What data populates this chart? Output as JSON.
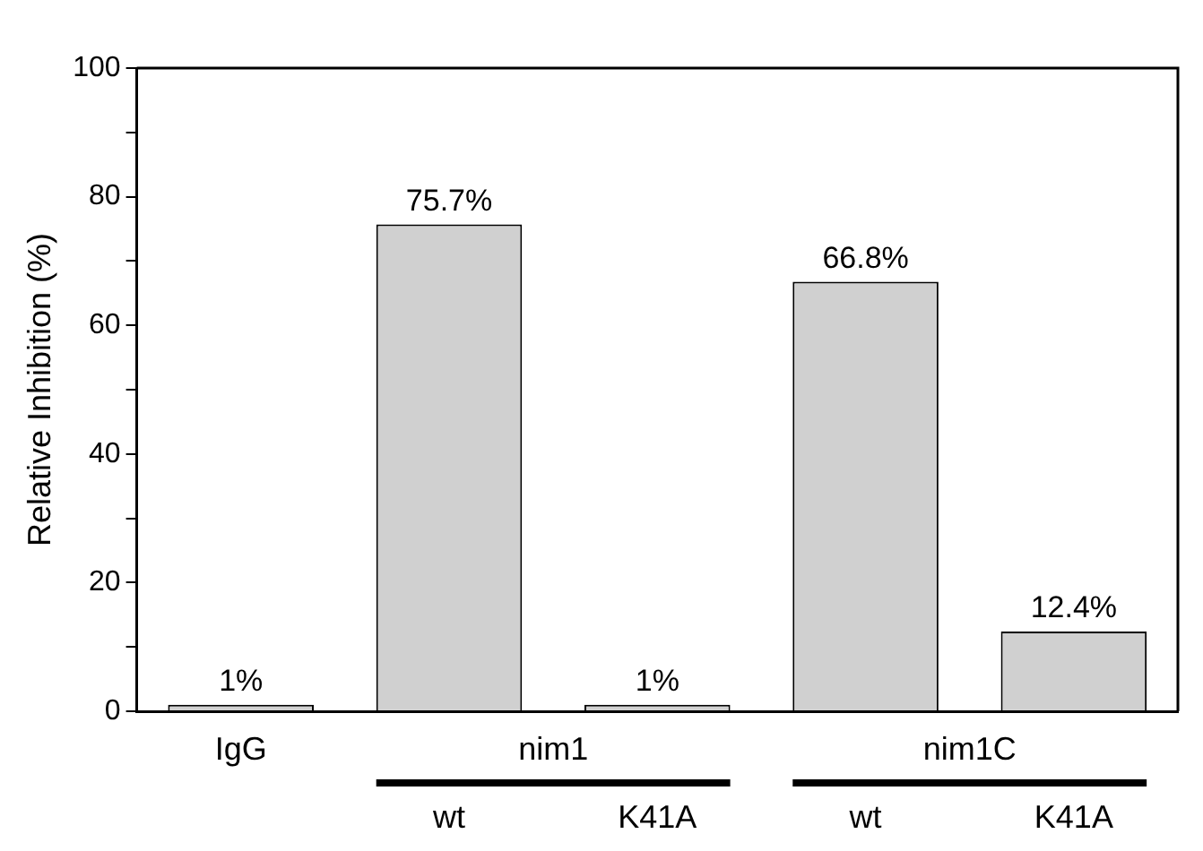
{
  "chart_data": {
    "type": "bar",
    "ylabel": "Relative Inhibition (%)",
    "categories": [
      "IgG",
      "wt",
      "K41A",
      "wt",
      "K41A"
    ],
    "values": [
      1,
      75.7,
      1,
      66.8,
      12.4
    ],
    "value_labels": [
      "1%",
      "75.7%",
      "1%",
      "66.8%",
      "12.4%"
    ],
    "color": "#d0d0d0",
    "ylim": [
      0,
      100
    ],
    "yticks": [
      0,
      {
        "value": 10,
        "label": null
      },
      20,
      {
        "value": 30,
        "label": null
      },
      40,
      {
        "value": 50,
        "label": null
      },
      60,
      {
        "value": 70,
        "label": null
      },
      80,
      {
        "value": 90,
        "label": null
      },
      100
    ],
    "annotations": [
      "nim1",
      "nim1C"
    ],
    "grid": false,
    "legend": false
  }
}
